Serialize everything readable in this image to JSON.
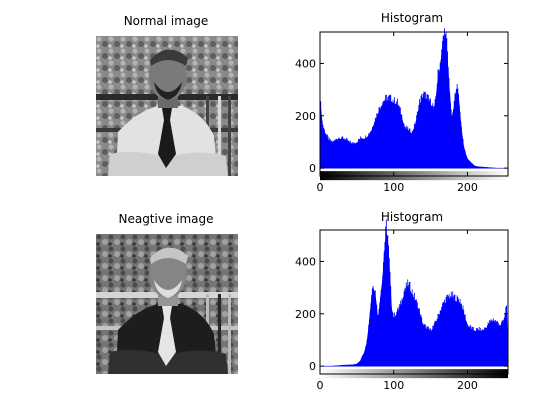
{
  "chart_data": [
    {
      "type": "image",
      "title": "Normal image",
      "variant": "normal"
    },
    {
      "type": "area",
      "title": "Histogram",
      "xlim": [
        0,
        255
      ],
      "ylim": [
        -30,
        520
      ],
      "xticks": [
        0,
        100,
        200
      ],
      "yticks": [
        0,
        200,
        400
      ],
      "color": "#0000ff",
      "series": [
        {
          "x": [
            0,
            1,
            3,
            5,
            8,
            12,
            16,
            20,
            25,
            30,
            35,
            40,
            45,
            50,
            55,
            60,
            65,
            70,
            75,
            80,
            85,
            90,
            95,
            100,
            105,
            110,
            115,
            120,
            125,
            130,
            135,
            140,
            145,
            150,
            152,
            155,
            158,
            160,
            163,
            165,
            168,
            170,
            172,
            175,
            178,
            180,
            183,
            185,
            188,
            190,
            193,
            195,
            198,
            200,
            205,
            210,
            215,
            220,
            230,
            240,
            255
          ],
          "values": [
            20,
            230,
            170,
            145,
            125,
            105,
            95,
            100,
            110,
            110,
            105,
            95,
            90,
            95,
            110,
            110,
            120,
            140,
            180,
            215,
            240,
            255,
            255,
            245,
            240,
            200,
            150,
            140,
            130,
            170,
            240,
            270,
            260,
            240,
            235,
            215,
            280,
            340,
            380,
            430,
            480,
            510,
            450,
            320,
            200,
            190,
            260,
            300,
            270,
            200,
            120,
            80,
            50,
            35,
            20,
            8,
            5,
            4,
            2,
            0,
            0
          ]
        }
      ],
      "colorbar": "black-to-white"
    },
    {
      "type": "image",
      "title": "Neagtive image",
      "variant": "negative"
    },
    {
      "type": "area",
      "title": "Histogram",
      "xlim": [
        0,
        255
      ],
      "ylim": [
        -30,
        520
      ],
      "xticks": [
        0,
        100,
        200
      ],
      "yticks": [
        0,
        200,
        400
      ],
      "color": "#0000ff",
      "series": [
        {
          "x": [
            0,
            15,
            25,
            35,
            45,
            50,
            55,
            57,
            60,
            63,
            65,
            68,
            70,
            72,
            75,
            78,
            80,
            82,
            85,
            87,
            90,
            92,
            95,
            97,
            100,
            105,
            110,
            115,
            120,
            125,
            130,
            135,
            140,
            145,
            150,
            155,
            160,
            165,
            170,
            175,
            180,
            185,
            190,
            195,
            200,
            205,
            210,
            215,
            220,
            225,
            230,
            235,
            240,
            245,
            250,
            253,
            255
          ],
          "values": [
            0,
            0,
            2,
            4,
            5,
            8,
            20,
            35,
            50,
            80,
            120,
            200,
            260,
            300,
            270,
            190,
            200,
            260,
            330,
            420,
            510,
            470,
            330,
            220,
            180,
            200,
            230,
            280,
            300,
            270,
            240,
            200,
            150,
            140,
            130,
            150,
            180,
            215,
            240,
            255,
            255,
            245,
            240,
            200,
            150,
            140,
            130,
            135,
            130,
            140,
            160,
            170,
            160,
            150,
            170,
            230,
            20
          ]
        }
      ],
      "colorbar": "white-to-black"
    }
  ]
}
